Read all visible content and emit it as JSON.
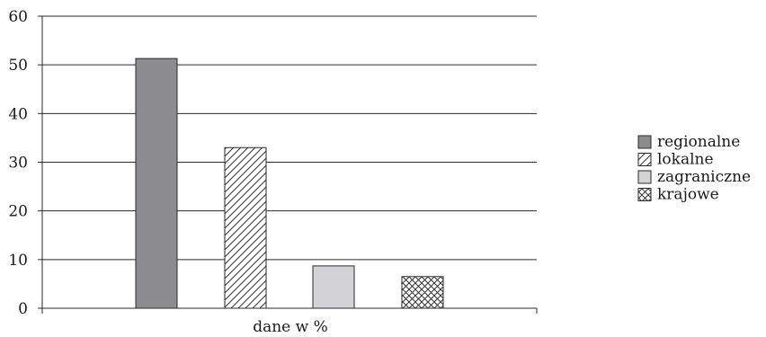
{
  "chart_data": {
    "type": "bar",
    "categories": [
      "dane w %"
    ],
    "xlabel": "dane w %",
    "ylabel": "",
    "title": "",
    "ylim": [
      0,
      60
    ],
    "yticks": [
      0,
      10,
      20,
      30,
      40,
      50,
      60
    ],
    "grid": true,
    "legend_position": "right",
    "series": [
      {
        "name": "regionalne",
        "values": [
          51.3
        ],
        "color": "#8c8c8e",
        "pattern": "solid"
      },
      {
        "name": "lokalne",
        "values": [
          33
        ],
        "color": "#ffffff",
        "pattern": "diagonal-hatch"
      },
      {
        "name": "zagraniczne",
        "values": [
          8.7
        ],
        "color": "#d3d3d5",
        "pattern": "solid"
      },
      {
        "name": "krajowe",
        "values": [
          6.5
        ],
        "color": "#ffffff",
        "pattern": "crosshatch"
      }
    ]
  }
}
